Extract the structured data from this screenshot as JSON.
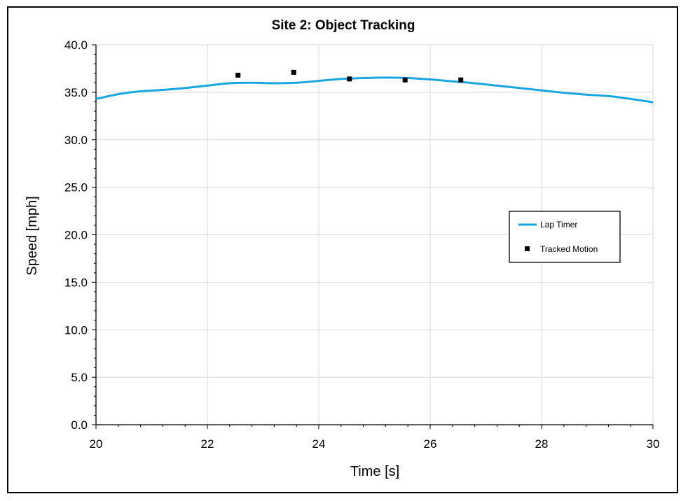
{
  "chart_data": {
    "type": "line",
    "title": "Site 2: Object Tracking",
    "xlabel": "Time [s]",
    "ylabel": "Speed [mph]",
    "xlim": [
      20,
      30
    ],
    "ylim": [
      0,
      40
    ],
    "x_ticks": [
      20,
      22,
      24,
      26,
      28,
      30
    ],
    "y_ticks": [
      0,
      5,
      10,
      15,
      20,
      25,
      30,
      35,
      40
    ],
    "x_tick_labels": [
      "20",
      "22",
      "24",
      "26",
      "28",
      "30"
    ],
    "y_tick_labels": [
      "0.0",
      "5.0",
      "10.0",
      "15.0",
      "20.0",
      "25.0",
      "30.0",
      "35.0",
      "40.0"
    ],
    "grid": true,
    "legend_position": "right",
    "series": [
      {
        "name": "Lap Timer",
        "kind": "line",
        "color": "#1aa7e0",
        "x": [
          20,
          20.4,
          20.8,
          21.2,
          21.6,
          22,
          22.4,
          22.8,
          23.2,
          23.6,
          24,
          24.4,
          24.8,
          25.2,
          25.6,
          26,
          26.4,
          26.8,
          27.2,
          27.6,
          28,
          28.4,
          28.8,
          29.2,
          29.6,
          30
        ],
        "y": [
          34.3,
          34.8,
          35.1,
          35.25,
          35.45,
          35.7,
          35.95,
          36.0,
          35.95,
          36.0,
          36.2,
          36.4,
          36.5,
          36.55,
          36.5,
          36.35,
          36.15,
          35.95,
          35.7,
          35.45,
          35.2,
          34.95,
          34.75,
          34.6,
          34.3,
          33.95
        ]
      },
      {
        "name": "Tracked Motion",
        "kind": "scatter",
        "color": "#000000",
        "x": [
          22.55,
          23.55,
          24.55,
          25.55,
          26.55
        ],
        "y": [
          36.8,
          37.1,
          36.4,
          36.3,
          36.3
        ]
      }
    ]
  }
}
